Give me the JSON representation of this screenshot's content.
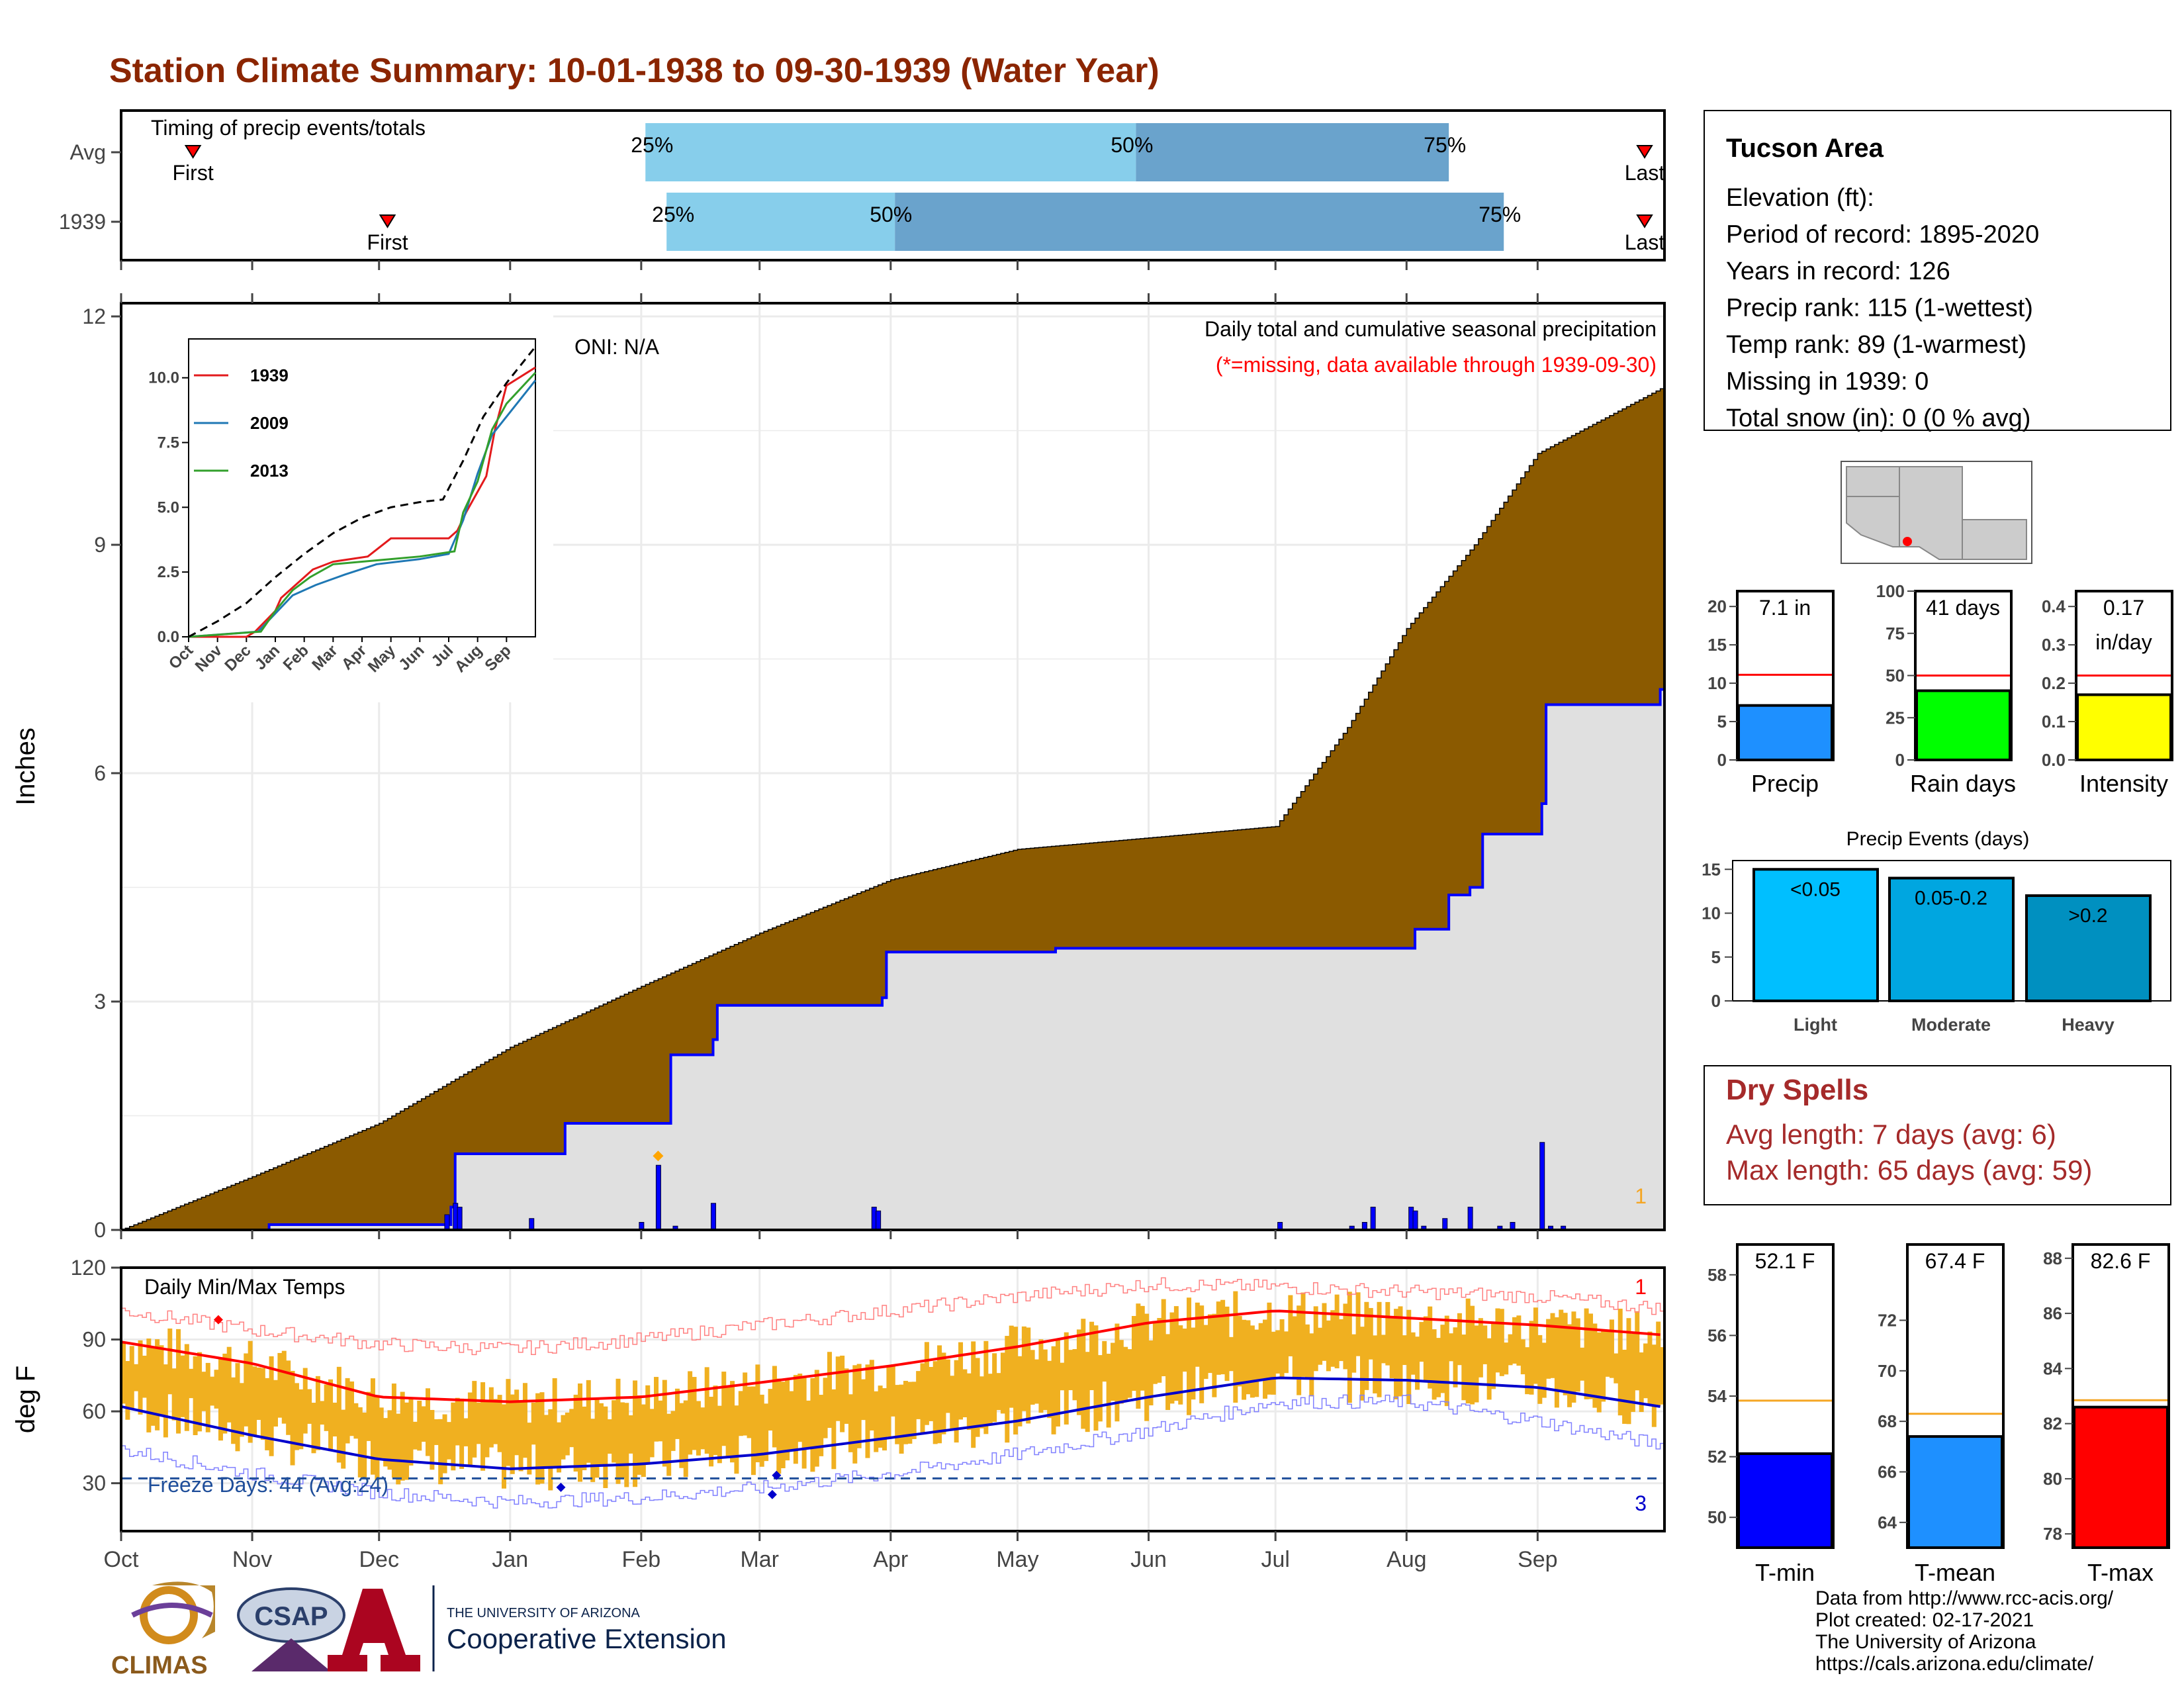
{
  "title": "Station Climate Summary: 10-01-1938 to 09-30-1939 (Water Year)",
  "colors": {
    "title": "#8b2500",
    "cum_fill": "#8b5a00",
    "avg_fill": "#e0e0e0",
    "avg_line": "#0000ff",
    "daily_bar": "#0000ff",
    "band_light": "#87ceeb",
    "band_dark": "#6aa3cc",
    "temp_bar": "#f0b020",
    "avg_max": "#ff0000",
    "avg_min": "#0000cc",
    "orange_line": "#f5a623",
    "dry_spells": "#a52a2a"
  },
  "timing": {
    "label": "Timing of precip events/totals",
    "rows": [
      {
        "label": "Avg",
        "first_day": 17,
        "q25_day": 124,
        "q50_day": 240,
        "q75_day": 314,
        "last_day": 365,
        "first_label": "First",
        "last_label": "Last",
        "p25": "25%",
        "p50": "50%",
        "p75": "75%"
      },
      {
        "label": "1939",
        "first_day": 63,
        "q25_day": 129,
        "q50_day": 183,
        "q75_day": 327,
        "last_day": 370,
        "first_label": "First",
        "last_label": "Last",
        "p25": "25%",
        "p50": "50%",
        "p75": "75%"
      }
    ]
  },
  "months": [
    "Oct",
    "Nov",
    "Dec",
    "Jan",
    "Feb",
    "Mar",
    "Apr",
    "May",
    "Jun",
    "Jul",
    "Aug",
    "Sep"
  ],
  "month_days": [
    0,
    31,
    61,
    92,
    123,
    151,
    182,
    212,
    243,
    273,
    304,
    335
  ],
  "precip_panel": {
    "ylabel": "Inches",
    "ylim": [
      0,
      12
    ],
    "yticks": [
      0,
      3,
      6,
      9,
      12
    ],
    "oni": "ONI: N/A",
    "caption1": "Daily total and cumulative seasonal precipitation",
    "caption2": "(*=missing, data available through 1939-09-30)",
    "rank_label": "1"
  },
  "chart_data": [
    {
      "type": "area",
      "name": "cumulative_precip",
      "x_unit": "day of water year (0 = Oct 1)",
      "avg_cumulative": {
        "x": [
          0,
          31,
          61,
          92,
          123,
          151,
          182,
          212,
          243,
          273,
          290,
          304,
          320,
          335,
          364
        ],
        "y": [
          0,
          0.7,
          1.4,
          2.4,
          3.2,
          3.9,
          4.6,
          5.0,
          5.15,
          5.3,
          6.6,
          7.9,
          9.0,
          10.2,
          11.05
        ]
      },
      "obs_cumulative": {
        "x": [
          0,
          35,
          76,
          78,
          79,
          96,
          105,
          129,
          130,
          140,
          141,
          150,
          180,
          181,
          221,
          230,
          231,
          305,
          306,
          314,
          319,
          322,
          336,
          337,
          364
        ],
        "y": [
          0,
          0.07,
          0.07,
          0.3,
          1.0,
          1.0,
          1.4,
          1.4,
          2.3,
          2.5,
          2.95,
          2.95,
          3.05,
          3.65,
          3.7,
          3.7,
          3.7,
          3.7,
          3.95,
          4.4,
          4.5,
          5.2,
          5.6,
          6.9,
          7.1
        ]
      },
      "daily_bars": [
        {
          "day": 77,
          "v": 0.2
        },
        {
          "day": 79,
          "v": 0.35
        },
        {
          "day": 80,
          "v": 0.3
        },
        {
          "day": 97,
          "v": 0.15
        },
        {
          "day": 123,
          "v": 0.1
        },
        {
          "day": 127,
          "v": 0.85
        },
        {
          "day": 131,
          "v": 0.05
        },
        {
          "day": 140,
          "v": 0.35
        },
        {
          "day": 178,
          "v": 0.3
        },
        {
          "day": 179,
          "v": 0.25
        },
        {
          "day": 274,
          "v": 0.1
        },
        {
          "day": 291,
          "v": 0.05
        },
        {
          "day": 294,
          "v": 0.1
        },
        {
          "day": 296,
          "v": 0.3
        },
        {
          "day": 305,
          "v": 0.3
        },
        {
          "day": 306,
          "v": 0.25
        },
        {
          "day": 308,
          "v": 0.05
        },
        {
          "day": 313,
          "v": 0.15
        },
        {
          "day": 319,
          "v": 0.3
        },
        {
          "day": 326,
          "v": 0.05
        },
        {
          "day": 329,
          "v": 0.1
        },
        {
          "day": 336,
          "v": 1.15
        },
        {
          "day": 338,
          "v": 0.05
        },
        {
          "day": 341,
          "v": 0.05
        }
      ],
      "missing_marker_day": 127
    },
    {
      "type": "line",
      "name": "inset_cumulative",
      "ylim": [
        0,
        11.5
      ],
      "yticks": [
        0.0,
        2.5,
        5.0,
        7.5,
        10.0
      ],
      "ytick_labels": [
        "0.0",
        "2.5",
        "5.0",
        "7.5",
        "10.0"
      ],
      "series": [
        {
          "name": "1939",
          "color": "#e31a1c",
          "x": [
            0,
            2,
            2.3,
            3,
            3.2,
            3.6,
            4,
            4.3,
            5,
            6.2,
            7,
            8.3,
            9,
            9.3,
            9.6,
            10,
            10.3,
            10.6,
            11,
            12
          ],
          "y": [
            0,
            0,
            0.2,
            1.0,
            1.5,
            1.9,
            2.3,
            2.6,
            2.9,
            3.1,
            3.8,
            3.8,
            3.8,
            4.1,
            4.8,
            5.6,
            6.2,
            8.0,
            9.7,
            10.4
          ]
        },
        {
          "name": "2009",
          "color": "#1f78b4",
          "x": [
            0,
            2.4,
            3,
            3.6,
            4.4,
            5.4,
            6.5,
            8,
            9,
            9.5,
            10,
            10.5,
            11,
            12
          ],
          "y": [
            0,
            0.2,
            0.9,
            1.6,
            2.0,
            2.4,
            2.8,
            3.0,
            3.2,
            4.5,
            6.3,
            7.8,
            8.5,
            9.9
          ]
        },
        {
          "name": "2013",
          "color": "#33a02c",
          "x": [
            0,
            2.5,
            3,
            3.6,
            4.2,
            5,
            6,
            7,
            8,
            9.2,
            9.5,
            10,
            10.5,
            11,
            12
          ],
          "y": [
            0,
            0.2,
            1.0,
            1.8,
            2.3,
            2.8,
            2.9,
            3.0,
            3.1,
            3.3,
            4.8,
            6.0,
            8.0,
            9.0,
            10.2
          ]
        },
        {
          "name": "avg",
          "color": "#000000",
          "dashed": true,
          "x": [
            0,
            1,
            2,
            3,
            4,
            5,
            6,
            7,
            8,
            8.8,
            9.5,
            10.2,
            11,
            12
          ],
          "y": [
            0,
            0.6,
            1.3,
            2.3,
            3.2,
            4.0,
            4.6,
            5.0,
            5.2,
            5.3,
            6.8,
            8.5,
            9.8,
            11.2
          ]
        }
      ]
    },
    {
      "type": "bar",
      "name": "daily_temps",
      "ylabel": "deg F",
      "title": "Daily Min/Max Temps",
      "ylim": [
        10,
        120
      ],
      "yticks": [
        30,
        60,
        90,
        120
      ],
      "freeze_label": "Freeze Days: 44 (Avg:24)",
      "freeze_line": 32,
      "rank_hot": "1",
      "rank_cold": "3",
      "normal_max": {
        "x": [
          0,
          31,
          61,
          92,
          123,
          151,
          182,
          212,
          243,
          273,
          304,
          335,
          364
        ],
        "y": [
          89,
          80,
          66,
          64,
          66,
          72,
          79,
          87,
          97,
          102,
          99,
          96,
          92
        ]
      },
      "normal_min": {
        "x": [
          0,
          31,
          61,
          92,
          123,
          151,
          182,
          212,
          243,
          273,
          304,
          335,
          364
        ],
        "y": [
          62,
          50,
          40,
          36,
          38,
          42,
          49,
          56,
          66,
          74,
          73,
          70,
          62
        ]
      },
      "record_high": {
        "x": [
          0,
          31,
          61,
          92,
          123,
          151,
          182,
          212,
          243,
          273,
          304,
          335,
          364
        ],
        "y": [
          102,
          94,
          88,
          86,
          90,
          96,
          102,
          108,
          113,
          112,
          110,
          108,
          103
        ]
      },
      "record_low": {
        "x": [
          0,
          31,
          61,
          92,
          123,
          151,
          182,
          212,
          243,
          273,
          304,
          335,
          364
        ],
        "y": [
          44,
          34,
          26,
          22,
          24,
          28,
          34,
          42,
          52,
          64,
          64,
          56,
          46
        ]
      },
      "extreme_high_marker": {
        "day": 23,
        "v": 98
      },
      "extreme_low_markers": [
        {
          "day": 104,
          "v": 28
        },
        {
          "day": 154,
          "v": 25
        },
        {
          "day": 155,
          "v": 33
        }
      ]
    },
    {
      "type": "bar",
      "name": "precip_metrics",
      "bars": [
        {
          "label": "Precip",
          "value": 7.1,
          "avg": 11.1,
          "ylim": [
            0,
            22
          ],
          "yticks": [
            0,
            5,
            10,
            15,
            20
          ],
          "value_text": "7.1 in",
          "color": "#1e90ff"
        },
        {
          "label": "Rain days",
          "value": 41,
          "avg": 50,
          "ylim": [
            0,
            100
          ],
          "yticks": [
            0,
            25,
            50,
            75,
            100
          ],
          "value_text": "41 days",
          "color": "#00ff00"
        },
        {
          "label": "Intensity",
          "value": 0.17,
          "avg": 0.22,
          "ylim": [
            0,
            0.44
          ],
          "yticks": [
            0.0,
            0.1,
            0.2,
            0.3,
            0.4
          ],
          "ytick_labels": [
            "0.0",
            "0.1",
            "0.2",
            "0.3",
            "0.4"
          ],
          "value_text": "0.17",
          "value_text2": "in/day",
          "color": "#ffff00"
        }
      ]
    },
    {
      "type": "bar",
      "name": "precip_events",
      "title": "Precip Events (days)",
      "ylim": [
        0,
        16
      ],
      "yticks": [
        0,
        5,
        10,
        15
      ],
      "categories": [
        "Light",
        "Moderate",
        "Heavy"
      ],
      "values": [
        15,
        14,
        12
      ],
      "bar_labels": [
        "<0.05",
        "0.05-0.2",
        ">0.2"
      ],
      "colors": [
        "#00bfff",
        "#00a6e0",
        "#0090c0"
      ]
    },
    {
      "type": "bar",
      "name": "temp_metrics",
      "bars": [
        {
          "label": "T-min",
          "value": 52.1,
          "avg": 53.85,
          "ylim": [
            49,
            59
          ],
          "yticks": [
            50,
            52,
            54,
            56,
            58
          ],
          "value_text": "52.1 F",
          "color": "#0000ff"
        },
        {
          "label": "T-mean",
          "value": 67.4,
          "avg": 68.3,
          "ylim": [
            63,
            75
          ],
          "yticks": [
            64,
            66,
            68,
            70,
            72
          ],
          "value_text": "67.4 F",
          "color": "#1e90ff"
        },
        {
          "label": "T-max",
          "value": 82.6,
          "avg": 82.85,
          "ylim": [
            77.5,
            88.5
          ],
          "yticks": [
            78,
            80,
            82,
            84,
            86,
            88
          ],
          "value_text": "82.6 F",
          "color": "#ff0000"
        }
      ]
    }
  ],
  "info": {
    "station": "Tucson Area",
    "lines": [
      "Elevation (ft):",
      "Period of record: 1895-2020",
      "Years in record: 126",
      "Precip rank: 115 (1-wettest)",
      "Temp rank: 89 (1-warmest)",
      "Missing in 1939: 0",
      "Total snow (in): 0 (0 % avg)"
    ]
  },
  "dry_spells": {
    "title": "Dry Spells",
    "avg": "Avg length: 7 days (avg: 6)",
    "max": "Max length: 65 days (avg: 59)"
  },
  "footer": {
    "lines": [
      "Data from http://www.rcc-acis.org/",
      "Plot created: 02-17-2021",
      "The University of Arizona",
      "https://cals.arizona.edu/climate/"
    ],
    "climas": "CLIMAS",
    "csap": "CSAP",
    "ua_small": "THE UNIVERSITY OF ARIZONA",
    "ua_big": "Cooperative Extension"
  }
}
